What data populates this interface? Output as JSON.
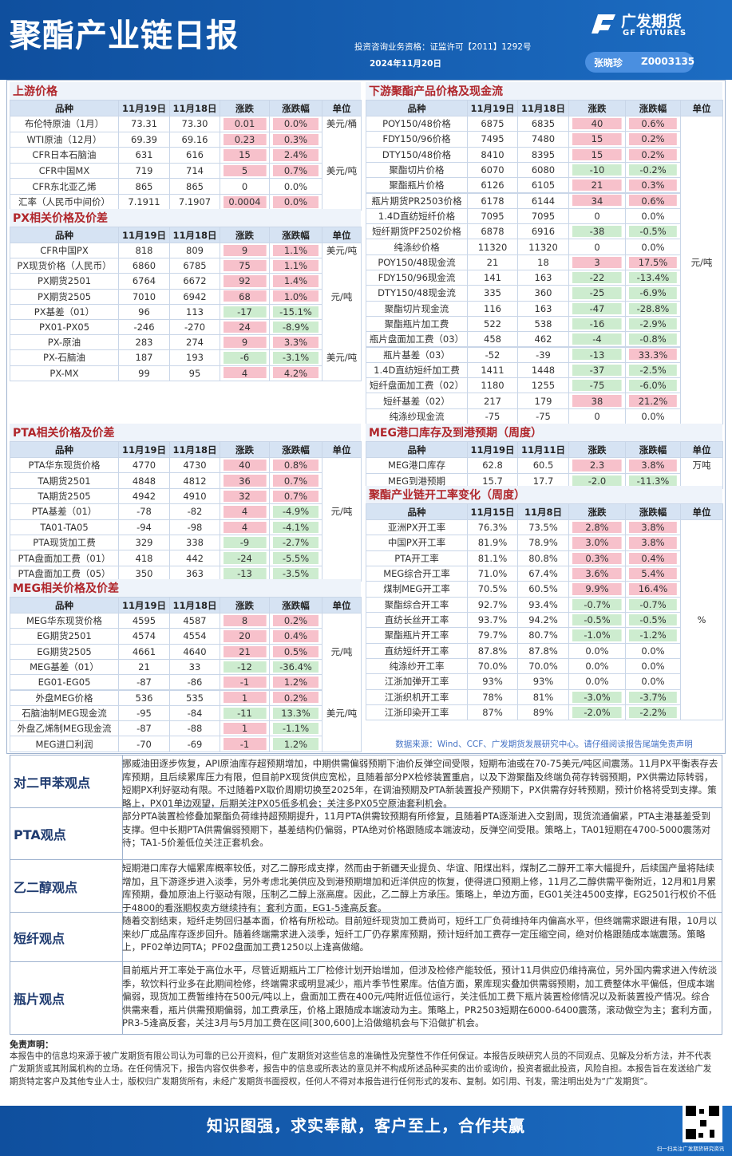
{
  "header": {
    "title": "聚酯产业链日报",
    "qualification": "投资咨询业务资格：证监许可【2011】1292号",
    "date": "2024年11月20日",
    "logo_name": "广发期货",
    "logo_en": "GF FUTURES",
    "analyst": "张晓珍",
    "analyst_id": "Z0003135"
  },
  "tables": [
    {
      "title": "上游价格",
      "columns": [
        "品种",
        "11月19日",
        "11月18日",
        "涨跌",
        "涨跌幅",
        "单位"
      ],
      "rows": [
        [
          "布伦特原油（1月）",
          "73.31",
          "73.30",
          "0.01",
          "0.0%",
          "美元/桶"
        ],
        [
          "WTI原油（12月）",
          "69.39",
          "69.16",
          "0.23",
          "0.3%",
          null
        ],
        [
          "CFR日本石脑油",
          "631",
          "616",
          "15",
          "2.4%",
          null
        ],
        [
          "CFR中国MX",
          "719",
          "714",
          "5",
          "0.7%",
          "美元/吨"
        ],
        [
          "CFR东北亚乙烯",
          "865",
          "865",
          "0",
          "0.0%",
          null
        ],
        [
          "汇率（人民币中间价）",
          "7.1911",
          "7.1907",
          "0.0004",
          "0.0%",
          null
        ]
      ],
      "cell_colors": [
        [
          "red",
          "red"
        ],
        [
          "red",
          "red"
        ],
        [
          "red",
          "red"
        ],
        [
          "red",
          "red"
        ],
        [
          null,
          null
        ],
        [
          "red",
          "red"
        ]
      ]
    },
    {
      "title": "PX相关价格及价差",
      "columns": [
        "品种",
        "11月19日",
        "11月18日",
        "涨跌",
        "涨跌幅",
        "单位"
      ],
      "rows": [
        [
          "CFR中国PX",
          "818",
          "809",
          "9",
          "1.1%",
          "美元/吨"
        ],
        [
          "PX现货价格（人民币）",
          "6860",
          "6785",
          "75",
          "1.1%",
          null
        ],
        [
          "PX期货2501",
          "6764",
          "6672",
          "92",
          "1.4%",
          null
        ],
        [
          "PX期货2505",
          "7010",
          "6942",
          "68",
          "1.0%",
          "元/吨"
        ],
        [
          "PX基差（01）",
          "96",
          "113",
          "-17",
          "-15.1%",
          null
        ],
        [
          "PX01-PX05",
          "-246",
          "-270",
          "24",
          "-8.9%",
          null
        ],
        [
          "PX-原油",
          "283",
          "274",
          "9",
          "3.3%",
          null
        ],
        [
          "PX-石脑油",
          "187",
          "193",
          "-6",
          "-3.1%",
          "美元/吨"
        ],
        [
          "PX-MX",
          "99",
          "95",
          "4",
          "4.2%",
          null
        ]
      ],
      "cell_colors": [
        [
          "red",
          "red"
        ],
        [
          "red",
          "red"
        ],
        [
          "red",
          "red"
        ],
        [
          "red",
          "red"
        ],
        [
          "green",
          "green"
        ],
        [
          "red",
          "green"
        ],
        [
          "red",
          "red"
        ],
        [
          "green",
          "green"
        ],
        [
          "red",
          "red"
        ]
      ]
    },
    {
      "title": "PTA相关价格及价差",
      "columns": [
        "品种",
        "11月19日",
        "11月18日",
        "涨跌",
        "涨跌幅",
        "单位"
      ],
      "rows": [
        [
          "PTA华东现货价格",
          "4770",
          "4730",
          "40",
          "0.8%",
          null
        ],
        [
          "TA期货2501",
          "4848",
          "4812",
          "36",
          "0.7%",
          null
        ],
        [
          "TA期货2505",
          "4942",
          "4910",
          "32",
          "0.7%",
          null
        ],
        [
          "PTA基差（01）",
          "-78",
          "-82",
          "4",
          "-4.9%",
          "元/吨"
        ],
        [
          "TA01-TA05",
          "-94",
          "-98",
          "4",
          "-4.1%",
          null
        ],
        [
          "PTA现货加工费",
          "329",
          "338",
          "-9",
          "-2.7%",
          null
        ],
        [
          "PTA盘面加工费（01）",
          "418",
          "442",
          "-24",
          "-5.5%",
          null
        ],
        [
          "PTA盘面加工费（05）",
          "350",
          "363",
          "-13",
          "-3.5%",
          null
        ]
      ],
      "cell_colors": [
        [
          "red",
          "red"
        ],
        [
          "red",
          "red"
        ],
        [
          "red",
          "red"
        ],
        [
          "red",
          "green"
        ],
        [
          "red",
          "green"
        ],
        [
          "green",
          "green"
        ],
        [
          "green",
          "green"
        ],
        [
          "green",
          "green"
        ]
      ]
    },
    {
      "title": "MEG相关价格及价差",
      "columns": [
        "品种",
        "11月19日",
        "11月18日",
        "涨跌",
        "涨跌幅",
        "单位"
      ],
      "rows": [
        [
          "MEG华东现货价格",
          "4595",
          "4587",
          "8",
          "0.2%",
          null
        ],
        [
          "EG期货2501",
          "4574",
          "4554",
          "20",
          "0.4%",
          null
        ],
        [
          "EG期货2505",
          "4661",
          "4640",
          "21",
          "0.5%",
          "元/吨"
        ],
        [
          "MEG基差（01）",
          "21",
          "33",
          "-12",
          "-36.4%",
          null
        ],
        [
          "EG01-EG05",
          "-87",
          "-86",
          "-1",
          "1.2%",
          null
        ],
        [
          "外盘MEG价格",
          "536",
          "535",
          "1",
          "0.2%",
          null
        ],
        [
          "石脑油制MEG现金流",
          "-95",
          "-84",
          "-11",
          "13.3%",
          "美元/吨"
        ],
        [
          "外盘乙烯制MEG现金流",
          "-87",
          "-88",
          "1",
          "-1.1%",
          null
        ],
        [
          "MEG进口利润",
          "-70",
          "-69",
          "-1",
          "1.2%",
          null
        ]
      ],
      "cell_colors": [
        [
          "red",
          "red"
        ],
        [
          "red",
          "red"
        ],
        [
          "red",
          "red"
        ],
        [
          "green",
          "green"
        ],
        [
          "red",
          "red"
        ],
        [
          "red",
          "red"
        ],
        [
          "green",
          "green"
        ],
        [
          "red",
          "green"
        ],
        [
          "red",
          "green"
        ]
      ]
    },
    {
      "title": "下游聚酯产品价格及现金流",
      "columns": [
        "品种",
        "11月19日",
        "11月18日",
        "涨跌",
        "涨跌幅",
        "单位"
      ],
      "rows": [
        [
          "POY150/48价格",
          "6875",
          "6835",
          "40",
          "0.6%",
          null
        ],
        [
          "FDY150/96价格",
          "7495",
          "7480",
          "15",
          "0.2%",
          null
        ],
        [
          "DTY150/48价格",
          "8410",
          "8395",
          "15",
          "0.2%",
          null
        ],
        [
          "聚酯切片价格",
          "6070",
          "6080",
          "-10",
          "-0.2%",
          null
        ],
        [
          "聚酯瓶片价格",
          "6126",
          "6105",
          "21",
          "0.3%",
          null
        ],
        [
          "瓶片期货PR2503价格",
          "6178",
          "6144",
          "34",
          "0.6%",
          null
        ],
        [
          "1.4D直纺短纤价格",
          "7095",
          "7095",
          "0",
          "0.0%",
          null
        ],
        [
          "短纤期货PF2502价格",
          "6878",
          "6916",
          "-38",
          "-0.5%",
          null
        ],
        [
          "纯涤纱价格",
          "11320",
          "11320",
          "0",
          "0.0%",
          null
        ],
        [
          "POY150/48现金流",
          "21",
          "18",
          "3",
          "17.5%",
          "元/吨"
        ],
        [
          "FDY150/96现金流",
          "141",
          "163",
          "-22",
          "-13.4%",
          null
        ],
        [
          "DTY150/48现金流",
          "335",
          "360",
          "-25",
          "-6.9%",
          null
        ],
        [
          "聚酯切片现金流",
          "116",
          "163",
          "-47",
          "-28.8%",
          null
        ],
        [
          "聚酯瓶片加工费",
          "522",
          "538",
          "-16",
          "-2.9%",
          null
        ],
        [
          "瓶片盘面加工费（03）",
          "458",
          "462",
          "-4",
          "-0.8%",
          null
        ],
        [
          "瓶片基差（03）",
          "-52",
          "-39",
          "-13",
          "33.3%",
          null
        ],
        [
          "1.4D直纺短纤加工费",
          "1411",
          "1448",
          "-37",
          "-2.5%",
          null
        ],
        [
          "短纤盘面加工费（02）",
          "1180",
          "1255",
          "-75",
          "-6.0%",
          null
        ],
        [
          "短纤基差（02）",
          "217",
          "179",
          "38",
          "21.2%",
          null
        ],
        [
          "纯涤纱现金流",
          "-75",
          "-75",
          "0",
          "0.0%",
          null
        ]
      ],
      "cell_colors": [
        [
          "red",
          "red"
        ],
        [
          "red",
          "red"
        ],
        [
          "red",
          "red"
        ],
        [
          "green",
          "green"
        ],
        [
          "red",
          "red"
        ],
        [
          "red",
          "red"
        ],
        [
          null,
          null
        ],
        [
          "green",
          "green"
        ],
        [
          null,
          null
        ],
        [
          "red",
          "red"
        ],
        [
          "green",
          "green"
        ],
        [
          "green",
          "green"
        ],
        [
          "green",
          "green"
        ],
        [
          "green",
          "green"
        ],
        [
          "green",
          "green"
        ],
        [
          "green",
          "red"
        ],
        [
          "green",
          "green"
        ],
        [
          "green",
          "green"
        ],
        [
          "red",
          "red"
        ],
        [
          null,
          null
        ]
      ]
    },
    {
      "title": "MEG港口库存及到港预期（周度）",
      "columns": [
        "品种",
        "11月19日",
        "11月11日",
        "涨跌",
        "涨跌幅",
        "单位"
      ],
      "rows": [
        [
          "MEG港口库存",
          "62.8",
          "60.5",
          "2.3",
          "3.8%",
          "万吨"
        ],
        [
          "MEG到港预期",
          "15.7",
          "17.7",
          "-2.0",
          "-11.3%",
          null
        ]
      ],
      "cell_colors": [
        [
          "red",
          "red"
        ],
        [
          "green",
          "green"
        ]
      ]
    },
    {
      "title": "聚酯产业链开工率变化（周度）",
      "columns": [
        "品种",
        "11月15日",
        "11月8日",
        "涨跌",
        "涨跌幅",
        "单位"
      ],
      "rows": [
        [
          "亚洲PX开工率",
          "76.3%",
          "73.5%",
          "2.8%",
          "3.8%",
          null
        ],
        [
          "中国PX开工率",
          "81.9%",
          "78.9%",
          "3.0%",
          "3.8%",
          null
        ],
        [
          "PTA开工率",
          "81.1%",
          "80.8%",
          "0.3%",
          "0.4%",
          null
        ],
        [
          "MEG综合开工率",
          "71.0%",
          "67.4%",
          "3.6%",
          "5.4%",
          null
        ],
        [
          "煤制MEG开工率",
          "70.5%",
          "60.5%",
          "9.9%",
          "16.4%",
          null
        ],
        [
          "聚酯综合开工率",
          "92.7%",
          "93.4%",
          "-0.7%",
          "-0.7%",
          null
        ],
        [
          "直纺长丝开工率",
          "93.7%",
          "94.2%",
          "-0.5%",
          "-0.5%",
          "%"
        ],
        [
          "聚酯瓶片开工率",
          "79.7%",
          "80.7%",
          "-1.0%",
          "-1.2%",
          null
        ],
        [
          "直纺短纤开工率",
          "87.8%",
          "87.8%",
          "0.0%",
          "0.0%",
          null
        ],
        [
          "纯涤纱开工率",
          "70.0%",
          "70.0%",
          "0.0%",
          "0.0%",
          null
        ],
        [
          "江浙加弹开工率",
          "93%",
          "93%",
          "0.0%",
          "0.0%",
          null
        ],
        [
          "江浙织机开工率",
          "78%",
          "81%",
          "-3.0%",
          "-3.7%",
          null
        ],
        [
          "江浙印染开工率",
          "87%",
          "89%",
          "-2.0%",
          "-2.2%",
          null
        ]
      ],
      "cell_colors": [
        [
          "red",
          "red"
        ],
        [
          "red",
          "red"
        ],
        [
          "red",
          "red"
        ],
        [
          "red",
          "red"
        ],
        [
          "red",
          "red"
        ],
        [
          "green",
          "green"
        ],
        [
          "green",
          "green"
        ],
        [
          "green",
          "green"
        ],
        [
          null,
          null
        ],
        [
          null,
          null
        ],
        [
          null,
          null
        ],
        [
          "green",
          "green"
        ],
        [
          "green",
          "green"
        ]
      ]
    }
  ],
  "source": "数据来源：Wind、CCF、广发期货发展研究中心。请仔细阅读报告尾端免责声明",
  "views": [
    {
      "label": "对二甲苯观点",
      "text": "挪威油田逐步恢复，API原油库存超预期增加，中期供需偏弱预期下油价反弹空间受限，短期布油或在70-75美元/吨区间震荡。11月PX平衡表存去库预期，且后续累库压力有限，但目前PX现货供应宽松，且随着部分PX检修装置重启，以及下游聚酯及终端负荷存转弱预期，PX供需边际转弱，短期PX利好驱动有限。不过随着PX取价周期切换至2025年，在调油预期及PTA新装置投产预期下，PX供需存好转预期，预计价格将受到支撑。策略上，PX01单边观望，后期关注PX05低多机会；关注多PX05空原油套利机会。"
    },
    {
      "label": "PTA观点",
      "text": "部分PTA装置检修叠加聚酯负荷维持超预期提升，11月PTA供需较预期有所修复，且随着PTA逐渐进入交割周，现货流通偏紧，PTA主港基差受到支撑。但中长期PTA供需偏弱预期下，基差结构仍偏弱，PTA绝对价格跟随成本端波动，反弹空间受限。策略上，TA01短期在4700-5000震荡对待；TA1-5价差低位关注正套机会。"
    },
    {
      "label": "乙二醇观点",
      "text": "短期港口库存大幅累库概率较低，对乙二醇形成支撑，然而由于新疆天业提负、华谊、阳煤出料，煤制乙二醇开工率大幅提升，后续国产量将陆续增加，且下游逐步进入淡季，另外考虑北美供应及到港预期增加和近洋供应的恢复，使得进口预期上修，11月乙二醇供需平衡附近，12月和1月累库预期，叠加原油上行驱动有限，压制乙二醇上涨高度。因此，乙二醇上方承压。策略上，单边方面，EG01关注4500支撑，EG2501行权价不低于4800的看涨期权卖方继续持有；套利方面，EG1-5逢高反套。"
    },
    {
      "label": "短纤观点",
      "text": "随着交割结束，短纤走势回归基本面，价格有所松动。目前短纤现货加工费尚可，短纤工厂负荷维持年内偏高水平，但终端需求跟进有限，10月以来纱厂成品库存逐步回升。随着终端需求进入淡季，短纤工厂仍存累库预期，预计短纤加工费存一定压缩空间，绝对价格跟随成本端震荡。策略上，PF02单边同TA；PF02盘面加工费1250以上逢高做缩。"
    },
    {
      "label": "瓶片观点",
      "text": "目前瓶片开工率处于高位水平，尽管近期瓶片工厂检修计划开始增加，但涉及检修产能较低，预计11月供应仍维持高位，另外国内需求进入传统淡季，软饮料行业多在此期间检修，终端需求或明显减少，瓶片季节性累库。估值方面，累库现实叠加供需弱预期，加工费整体水平偏低，但成本端偏弱，现货加工费暂维持在500元/吨以上，盘面加工费在400元/吨附近低位运行，关注低加工费下瓶片装置检修情况以及新装置投产情况。综合供需来看，瓶片供需预期偏弱，加工费承压，价格上跟随成本端波动为主。策略上，PR2503短期在6000-6400震荡，滚动做空为主；套利方面，PR3-5逢高反套，关注3月与5月加工费在区间[300,600]上沿做缩机会与下沿做扩机会。"
    }
  ],
  "disclaimer": {
    "title": "免责声明：",
    "text": "本报告中的信息均来源于被广发期货有限公司认为可靠的已公开资料，但广发期货对这些信息的准确性及完整性不作任何保证。本报告反映研究人员的不同观点、见解及分析方法，并不代表广发期货或其附属机构的立场。在任何情况下，报告内容仅供参考，报告中的信息或所表达的意见并不构成所述品种买卖的出价或询价，投资者据此投资，风险自担。本报告旨在发送给广发期货特定客户及其他专业人士，版权归广发期货所有，未经广发期货书面授权，任何人不得对本报告进行任何形式的发布、复制。如引用、刊发，需注明出处为“广发期货”。"
  },
  "slogan": "知识图强，求实奉献，客户至上，合作共赢",
  "qr_caption": "扫一扫关注广发期货研究资讯"
}
